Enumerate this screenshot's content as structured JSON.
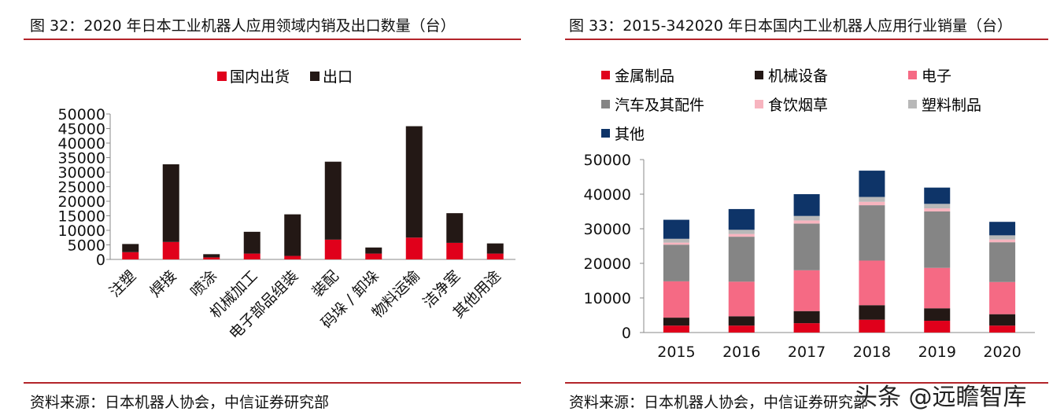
{
  "watermark": "头条 @远瞻智库",
  "left_panel": {
    "title": "图 32：2020 年日本工业机器人应用领域内销及出口数量（台）",
    "source": "资料来源：日本机器人协会，中信证券研究部"
  },
  "right_panel": {
    "title": "图 33：2015-342020 年日本国内工业机器人应用行业销量（台）",
    "source": "资料来源：日本机器人协会，中信证券研究部"
  },
  "colors": {
    "domestic": "#e0001b",
    "export": "#231815",
    "metal": "#e0001b",
    "machinery": "#231815",
    "electronics": "#f56a84",
    "auto": "#858585",
    "food": "#f7b4bf",
    "plastic": "#b8b8b8",
    "other": "#0e3468",
    "rule": "#b3242a"
  },
  "chart_data": [
    {
      "type": "bar",
      "stacked": true,
      "categories": [
        "注塑",
        "焊接",
        "喷涂",
        "机械加工",
        "电子部品组装",
        "装配",
        "码垛 / 卸垛",
        "物料运输",
        "洁净室",
        "其他用途"
      ],
      "series": [
        {
          "name": "国内出货",
          "values": [
            2500,
            6000,
            700,
            2000,
            1200,
            6800,
            2000,
            7500,
            5700,
            2000
          ]
        },
        {
          "name": "出口",
          "values": [
            2800,
            26700,
            1100,
            7500,
            14300,
            26800,
            2100,
            38300,
            10200,
            3500
          ]
        }
      ],
      "yticks": [
        "0",
        "5000",
        "10000",
        "15000",
        "20000",
        "25000",
        "30000",
        "35000",
        "40000",
        "45000",
        "50000"
      ],
      "ylim": [
        0,
        50000
      ],
      "legend_position": "top-center"
    },
    {
      "type": "bar",
      "stacked": true,
      "categories": [
        "2015",
        "2016",
        "2017",
        "2018",
        "2019",
        "2020"
      ],
      "series": [
        {
          "name": "金属制品",
          "values": [
            2000,
            2000,
            2700,
            3700,
            3400,
            2000
          ]
        },
        {
          "name": "机械设备",
          "values": [
            2300,
            2700,
            3500,
            4200,
            3600,
            3300
          ]
        },
        {
          "name": "电子",
          "values": [
            10500,
            10000,
            11800,
            12900,
            11700,
            9300
          ]
        },
        {
          "name": "汽车及其配件",
          "values": [
            10600,
            13000,
            13500,
            16000,
            16300,
            11500
          ]
        },
        {
          "name": "食饮烟草",
          "values": [
            600,
            800,
            900,
            1000,
            900,
            800
          ]
        },
        {
          "name": "塑料制品",
          "values": [
            1100,
            1200,
            1300,
            1400,
            1300,
            1200
          ]
        },
        {
          "name": "其他",
          "values": [
            5500,
            6000,
            6300,
            7600,
            4700,
            3900
          ]
        }
      ],
      "yticks": [
        "0",
        "10000",
        "20000",
        "30000",
        "40000",
        "50000"
      ],
      "ylim": [
        0,
        50000
      ],
      "legend_position": "top-left"
    }
  ]
}
